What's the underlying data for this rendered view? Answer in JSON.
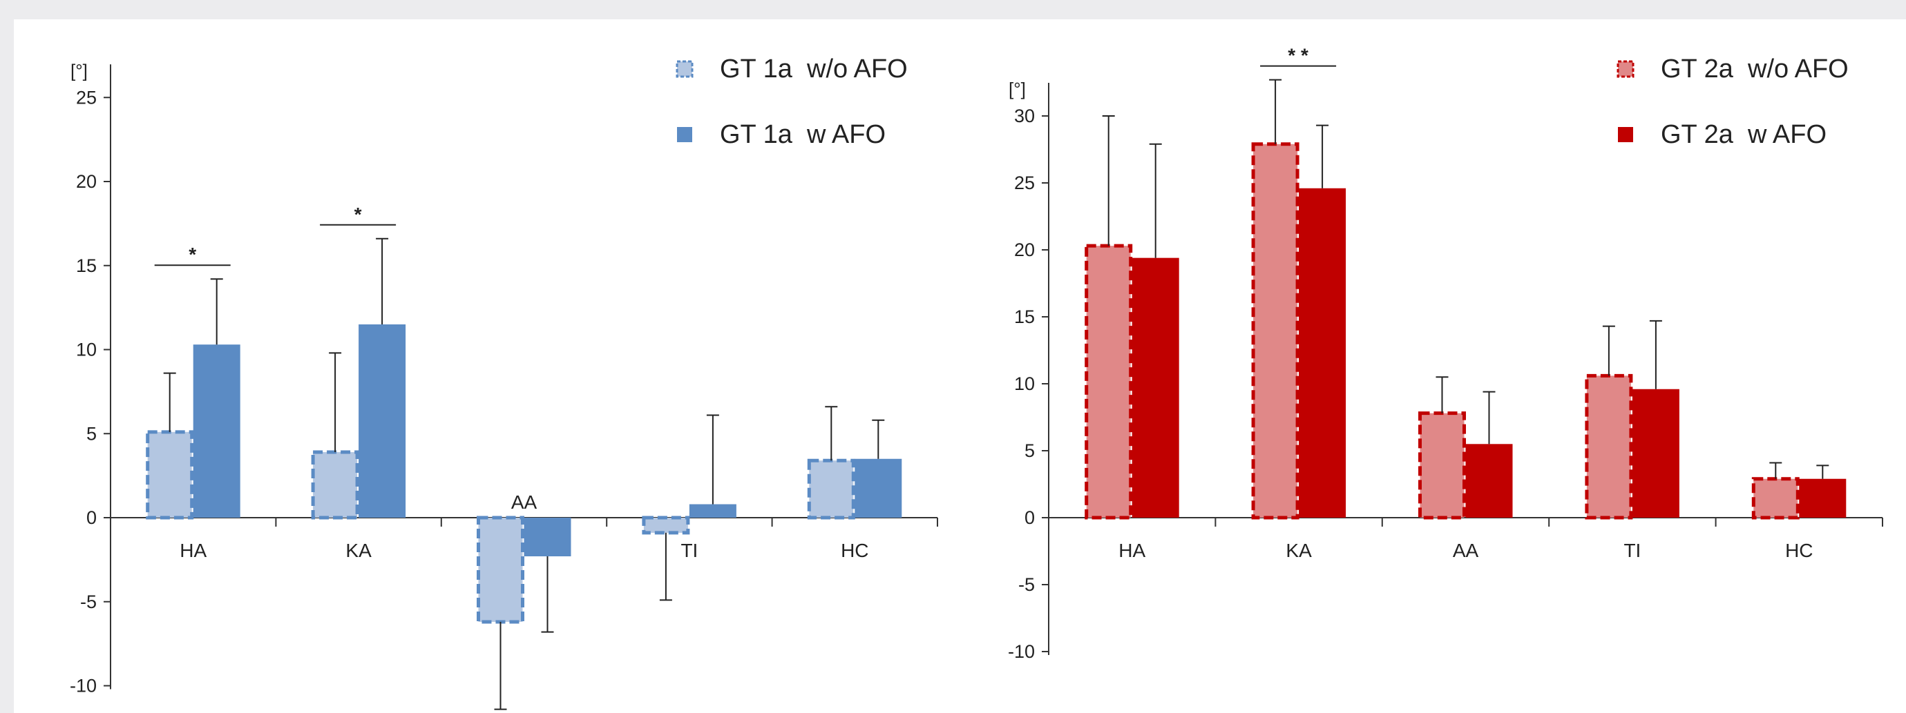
{
  "chart_data": [
    {
      "type": "bar",
      "unit_label": "[°]",
      "categories": [
        "HA",
        "KA",
        "AA",
        "TI",
        "HC"
      ],
      "ylim": [
        -10,
        25
      ],
      "yticks": [
        25,
        20,
        15,
        10,
        5,
        0,
        -5,
        -10
      ],
      "grid": false,
      "legend_position": "top-right",
      "series": [
        {
          "name": "GT 1a  w/o AFO",
          "values": [
            5.1,
            3.9,
            -6.2,
            -0.9,
            3.4
          ],
          "errors": [
            3.5,
            5.9,
            5.2,
            4.0,
            3.2
          ],
          "color": "#b3c6e1",
          "border": "#5b8bc4",
          "dashed": true
        },
        {
          "name": "GT 1a  w AFO",
          "values": [
            10.3,
            11.5,
            -2.3,
            0.8,
            3.5
          ],
          "errors": [
            3.9,
            5.1,
            4.5,
            5.3,
            2.3
          ],
          "color": "#5b8bc4",
          "border": "#5b8bc4",
          "dashed": false
        }
      ],
      "significance": [
        {
          "category": "HA",
          "label": "*"
        },
        {
          "category": "KA",
          "label": "*"
        }
      ]
    },
    {
      "type": "bar",
      "unit_label": "[°]",
      "categories": [
        "HA",
        "KA",
        "AA",
        "TI",
        "HC"
      ],
      "ylim": [
        -10,
        30
      ],
      "yticks": [
        30,
        25,
        20,
        15,
        10,
        5,
        0,
        -5,
        -10
      ],
      "grid": false,
      "legend_position": "top-right",
      "series": [
        {
          "name": "GT 2a  w/o AFO",
          "values": [
            20.3,
            27.9,
            7.8,
            10.6,
            2.9
          ],
          "errors": [
            9.7,
            4.8,
            2.7,
            3.7,
            1.2
          ],
          "color": "#e08888",
          "border": "#c00000",
          "dashed": true
        },
        {
          "name": "GT 2a  w AFO",
          "values": [
            19.4,
            24.6,
            5.5,
            9.6,
            2.9
          ],
          "errors": [
            8.5,
            4.7,
            3.9,
            5.1,
            1.0
          ],
          "color": "#c00000",
          "border": "#c00000",
          "dashed": false
        }
      ],
      "significance": [
        {
          "category": "KA",
          "label": "* *"
        }
      ]
    }
  ]
}
